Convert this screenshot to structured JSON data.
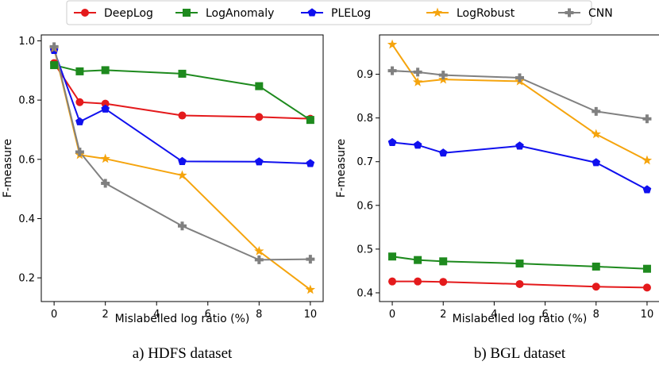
{
  "legend": [
    "DeepLog",
    "LogAnomaly",
    "PLELog",
    "LogRobust",
    "CNN"
  ],
  "chart_data": [
    {
      "type": "line",
      "title": "a) HDFS dataset",
      "xlabel": "Mislabelled log ratio (%)",
      "ylabel": "F-measure",
      "x": [
        0,
        1,
        2,
        5,
        8,
        10
      ],
      "xlim": [
        -0.5,
        10.5
      ],
      "ylim": [
        0.12,
        1.02
      ],
      "xticks": [
        0,
        2,
        4,
        6,
        8,
        10
      ],
      "yticks": [
        0.2,
        0.4,
        0.6,
        0.8,
        1.0
      ],
      "ytick_labels": [
        "0.2",
        "0.4",
        "0.6",
        "0.8",
        "1.0"
      ],
      "series": [
        {
          "name": "DeepLog",
          "values": [
            0.925,
            0.793,
            0.788,
            0.748,
            0.743,
            0.737
          ]
        },
        {
          "name": "LogAnomaly",
          "values": [
            0.918,
            0.897,
            0.901,
            0.889,
            0.847,
            0.733
          ]
        },
        {
          "name": "PLELog",
          "values": [
            0.968,
            0.727,
            0.77,
            0.593,
            0.592,
            0.586
          ]
        },
        {
          "name": "LogRobust",
          "values": [
            0.975,
            0.615,
            0.602,
            0.546,
            0.29,
            0.16
          ]
        },
        {
          "name": "CNN",
          "values": [
            0.98,
            0.625,
            0.519,
            0.375,
            0.261,
            0.263
          ]
        }
      ]
    },
    {
      "type": "line",
      "title": "b) BGL dataset",
      "xlabel": "Mislabelled log ratio (%)",
      "ylabel": "F-measure",
      "x": [
        0,
        1,
        2,
        5,
        8,
        10
      ],
      "xlim": [
        -0.5,
        10.5
      ],
      "ylim": [
        0.38,
        0.99
      ],
      "xticks": [
        0,
        2,
        4,
        6,
        8,
        10
      ],
      "yticks": [
        0.4,
        0.5,
        0.6,
        0.7,
        0.8,
        0.9
      ],
      "ytick_labels": [
        "0.4",
        "0.5",
        "0.6",
        "0.7",
        "0.8",
        "0.9"
      ],
      "series": [
        {
          "name": "DeepLog",
          "values": [
            0.426,
            0.426,
            0.425,
            0.42,
            0.414,
            0.412
          ]
        },
        {
          "name": "LogAnomaly",
          "values": [
            0.483,
            0.475,
            0.472,
            0.467,
            0.46,
            0.455
          ]
        },
        {
          "name": "PLELog",
          "values": [
            0.744,
            0.738,
            0.72,
            0.736,
            0.698,
            0.636
          ]
        },
        {
          "name": "LogRobust",
          "values": [
            0.968,
            0.882,
            0.888,
            0.884,
            0.763,
            0.703
          ]
        },
        {
          "name": "CNN",
          "values": [
            0.908,
            0.905,
            0.898,
            0.892,
            0.815,
            0.798
          ]
        }
      ]
    }
  ]
}
